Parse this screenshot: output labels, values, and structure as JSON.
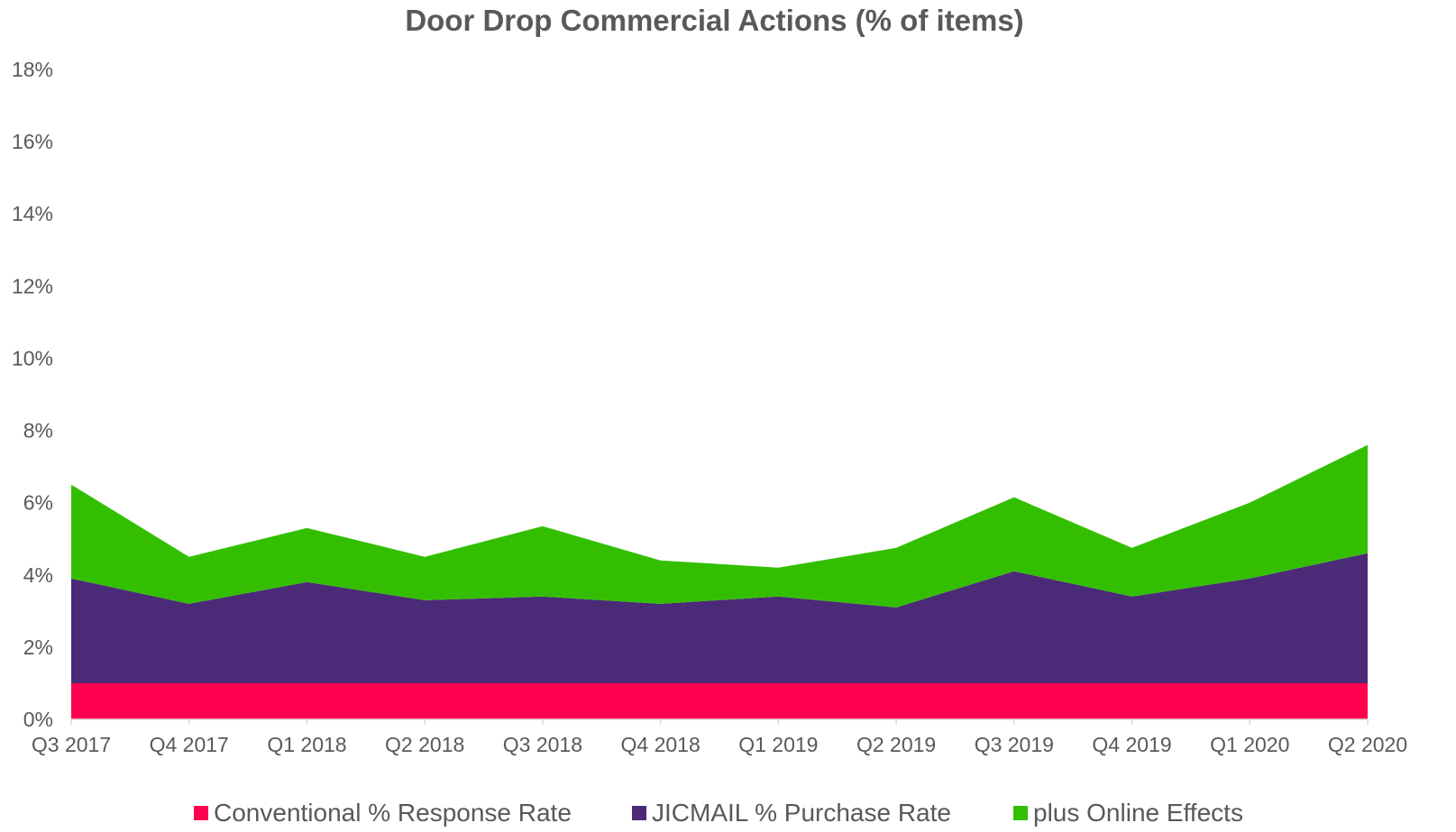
{
  "chart_data": {
    "type": "area",
    "stacked": true,
    "title": "Door Drop Commercial Actions (% of items)",
    "xlabel": "",
    "ylabel": "",
    "categories": [
      "Q3 2017",
      "Q4 2017",
      "Q1 2018",
      "Q2 2018",
      "Q3 2018",
      "Q4 2018",
      "Q1 2019",
      "Q2 2019",
      "Q3 2019",
      "Q4 2019",
      "Q1 2020",
      "Q2 2020"
    ],
    "ylim": [
      0,
      18
    ],
    "yticks": [
      0,
      2,
      4,
      6,
      8,
      10,
      12,
      14,
      16,
      18
    ],
    "ytick_labels": [
      "0%",
      "2%",
      "4%",
      "6%",
      "8%",
      "10%",
      "12%",
      "14%",
      "16%",
      "18%"
    ],
    "grid": false,
    "legend_position": "bottom",
    "series": [
      {
        "name": "Conventional % Response Rate",
        "color": "#FF0050",
        "values": [
          1.0,
          1.0,
          1.0,
          1.0,
          1.0,
          1.0,
          1.0,
          1.0,
          1.0,
          1.0,
          1.0,
          1.0
        ]
      },
      {
        "name": "JICMAIL % Purchase Rate",
        "color": "#4B2A78",
        "values": [
          2.9,
          2.2,
          2.8,
          2.3,
          2.4,
          2.2,
          2.4,
          2.1,
          3.1,
          2.4,
          2.9,
          3.6
        ]
      },
      {
        "name": "plus Online Effects",
        "color": "#33BF00",
        "values": [
          2.6,
          1.3,
          1.5,
          1.2,
          1.95,
          1.2,
          0.8,
          1.65,
          2.05,
          1.35,
          2.1,
          3.0
        ]
      }
    ]
  }
}
